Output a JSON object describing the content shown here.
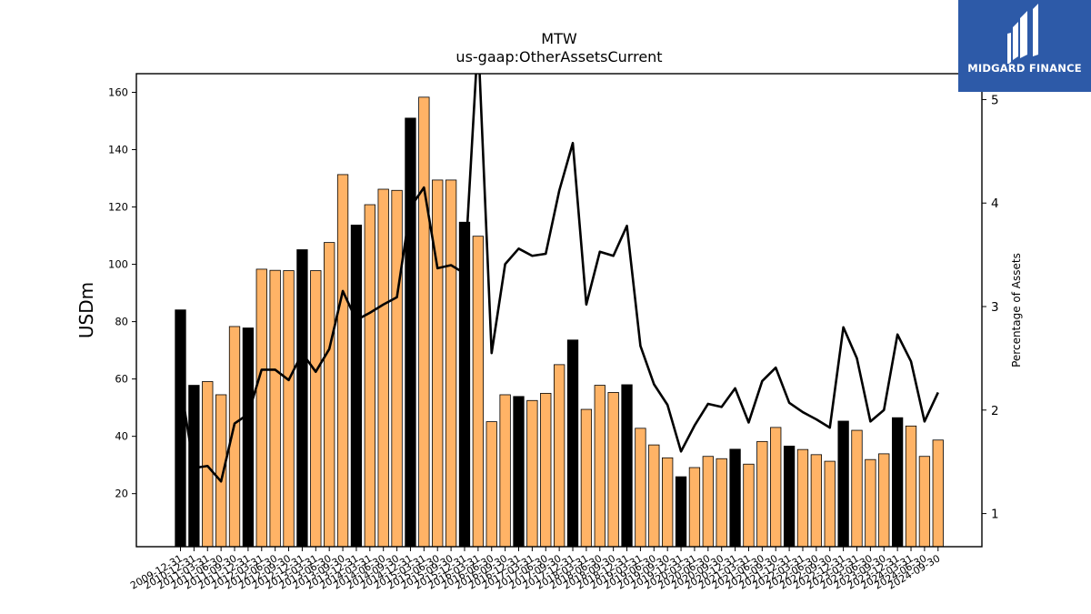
{
  "brand": {
    "name": "MIDGARD FINANCE",
    "color": "#2d5aa8"
  },
  "colors": {
    "bar": "#ffb366",
    "bar_highlight": "#000000",
    "line": "#000000"
  },
  "chart_data": {
    "type": "bar",
    "title": "MTW",
    "subtitle": "us-gaap:OtherAssetsCurrent",
    "ylabel": "USDm",
    "y2label": "Percentage of Assets",
    "ylim": [
      1.5,
      166.5
    ],
    "y2lim": [
      0.68,
      5.25
    ],
    "yticks": [
      20,
      40,
      60,
      80,
      100,
      120,
      140,
      160
    ],
    "y2ticks": [
      1,
      2,
      3,
      4,
      5
    ],
    "categories": [
      "2009-12-31",
      "2010-12-31",
      "2011-03-31",
      "2011-06-30",
      "2011-09-30",
      "2011-12-31",
      "2012-03-31",
      "2012-06-30",
      "2012-09-30",
      "2012-12-31",
      "2013-03-31",
      "2013-06-30",
      "2013-09-30",
      "2013-12-31",
      "2014-03-31",
      "2014-06-30",
      "2014-09-30",
      "2014-12-31",
      "2015-03-31",
      "2015-06-30",
      "2015-09-30",
      "2015-12-31",
      "2016-03-31",
      "2016-06-30",
      "2016-09-30",
      "2016-12-31",
      "2017-03-31",
      "2017-06-30",
      "2017-09-30",
      "2017-12-31",
      "2018-03-31",
      "2018-06-30",
      "2018-09-30",
      "2018-12-31",
      "2019-03-31",
      "2019-06-30",
      "2019-09-30",
      "2019-12-31",
      "2020-03-31",
      "2020-06-30",
      "2020-09-30",
      "2020-12-31",
      "2021-03-31",
      "2021-06-30",
      "2021-09-30",
      "2021-12-31",
      "2022-03-31",
      "2022-06-30",
      "2022-09-30",
      "2022-12-31",
      "2023-03-31",
      "2023-06-30",
      "2023-09-30",
      "2023-12-31",
      "2024-03-31",
      "2024-06-30",
      "2024-09-30"
    ],
    "series": [
      {
        "name": "USDm",
        "values": [
          84.1,
          57.8,
          59.1,
          54.5,
          78.3,
          77.8,
          98.3,
          97.9,
          97.8,
          105.1,
          97.8,
          107.6,
          131.3,
          113.7,
          120.8,
          126.2,
          125.8,
          151.0,
          158.3,
          129.4,
          129.4,
          114.7,
          109.8,
          45.1,
          54.5,
          53.9,
          52.5,
          55.0,
          65.0,
          73.6,
          49.4,
          57.8,
          55.3,
          58.0,
          42.8,
          37.0,
          32.5,
          25.9,
          29.1,
          33.0,
          32.2,
          35.5,
          30.3,
          38.2,
          43.1,
          36.6,
          35.4,
          33.6,
          31.3,
          45.3,
          42.1,
          31.9,
          33.9,
          46.5,
          43.6,
          33.0,
          38.7
        ],
        "highlight": [
          true,
          true,
          false,
          false,
          false,
          true,
          false,
          false,
          false,
          true,
          false,
          false,
          false,
          true,
          false,
          false,
          false,
          true,
          false,
          false,
          false,
          true,
          false,
          false,
          false,
          true,
          false,
          false,
          false,
          true,
          false,
          false,
          false,
          true,
          false,
          false,
          false,
          true,
          false,
          false,
          false,
          true,
          false,
          false,
          false,
          true,
          false,
          false,
          false,
          true,
          false,
          false,
          false,
          true,
          false,
          false,
          false
        ]
      },
      {
        "name": "Percentage of Assets",
        "values": [
          2.25,
          1.44,
          1.46,
          1.31,
          1.87,
          1.96,
          2.39,
          2.39,
          2.29,
          2.55,
          2.37,
          2.59,
          3.15,
          2.87,
          2.94,
          3.02,
          3.09,
          3.96,
          4.15,
          3.37,
          3.4,
          3.32,
          5.6,
          2.55,
          3.41,
          3.56,
          3.49,
          3.51,
          4.12,
          4.58,
          3.02,
          3.53,
          3.49,
          3.78,
          2.62,
          2.25,
          2.05,
          1.6,
          1.85,
          2.06,
          2.03,
          2.21,
          1.88,
          2.28,
          2.41,
          2.07,
          1.98,
          1.91,
          1.83,
          2.8,
          2.5,
          1.89,
          2.0,
          2.73,
          2.47,
          1.89,
          2.17
        ]
      }
    ]
  }
}
